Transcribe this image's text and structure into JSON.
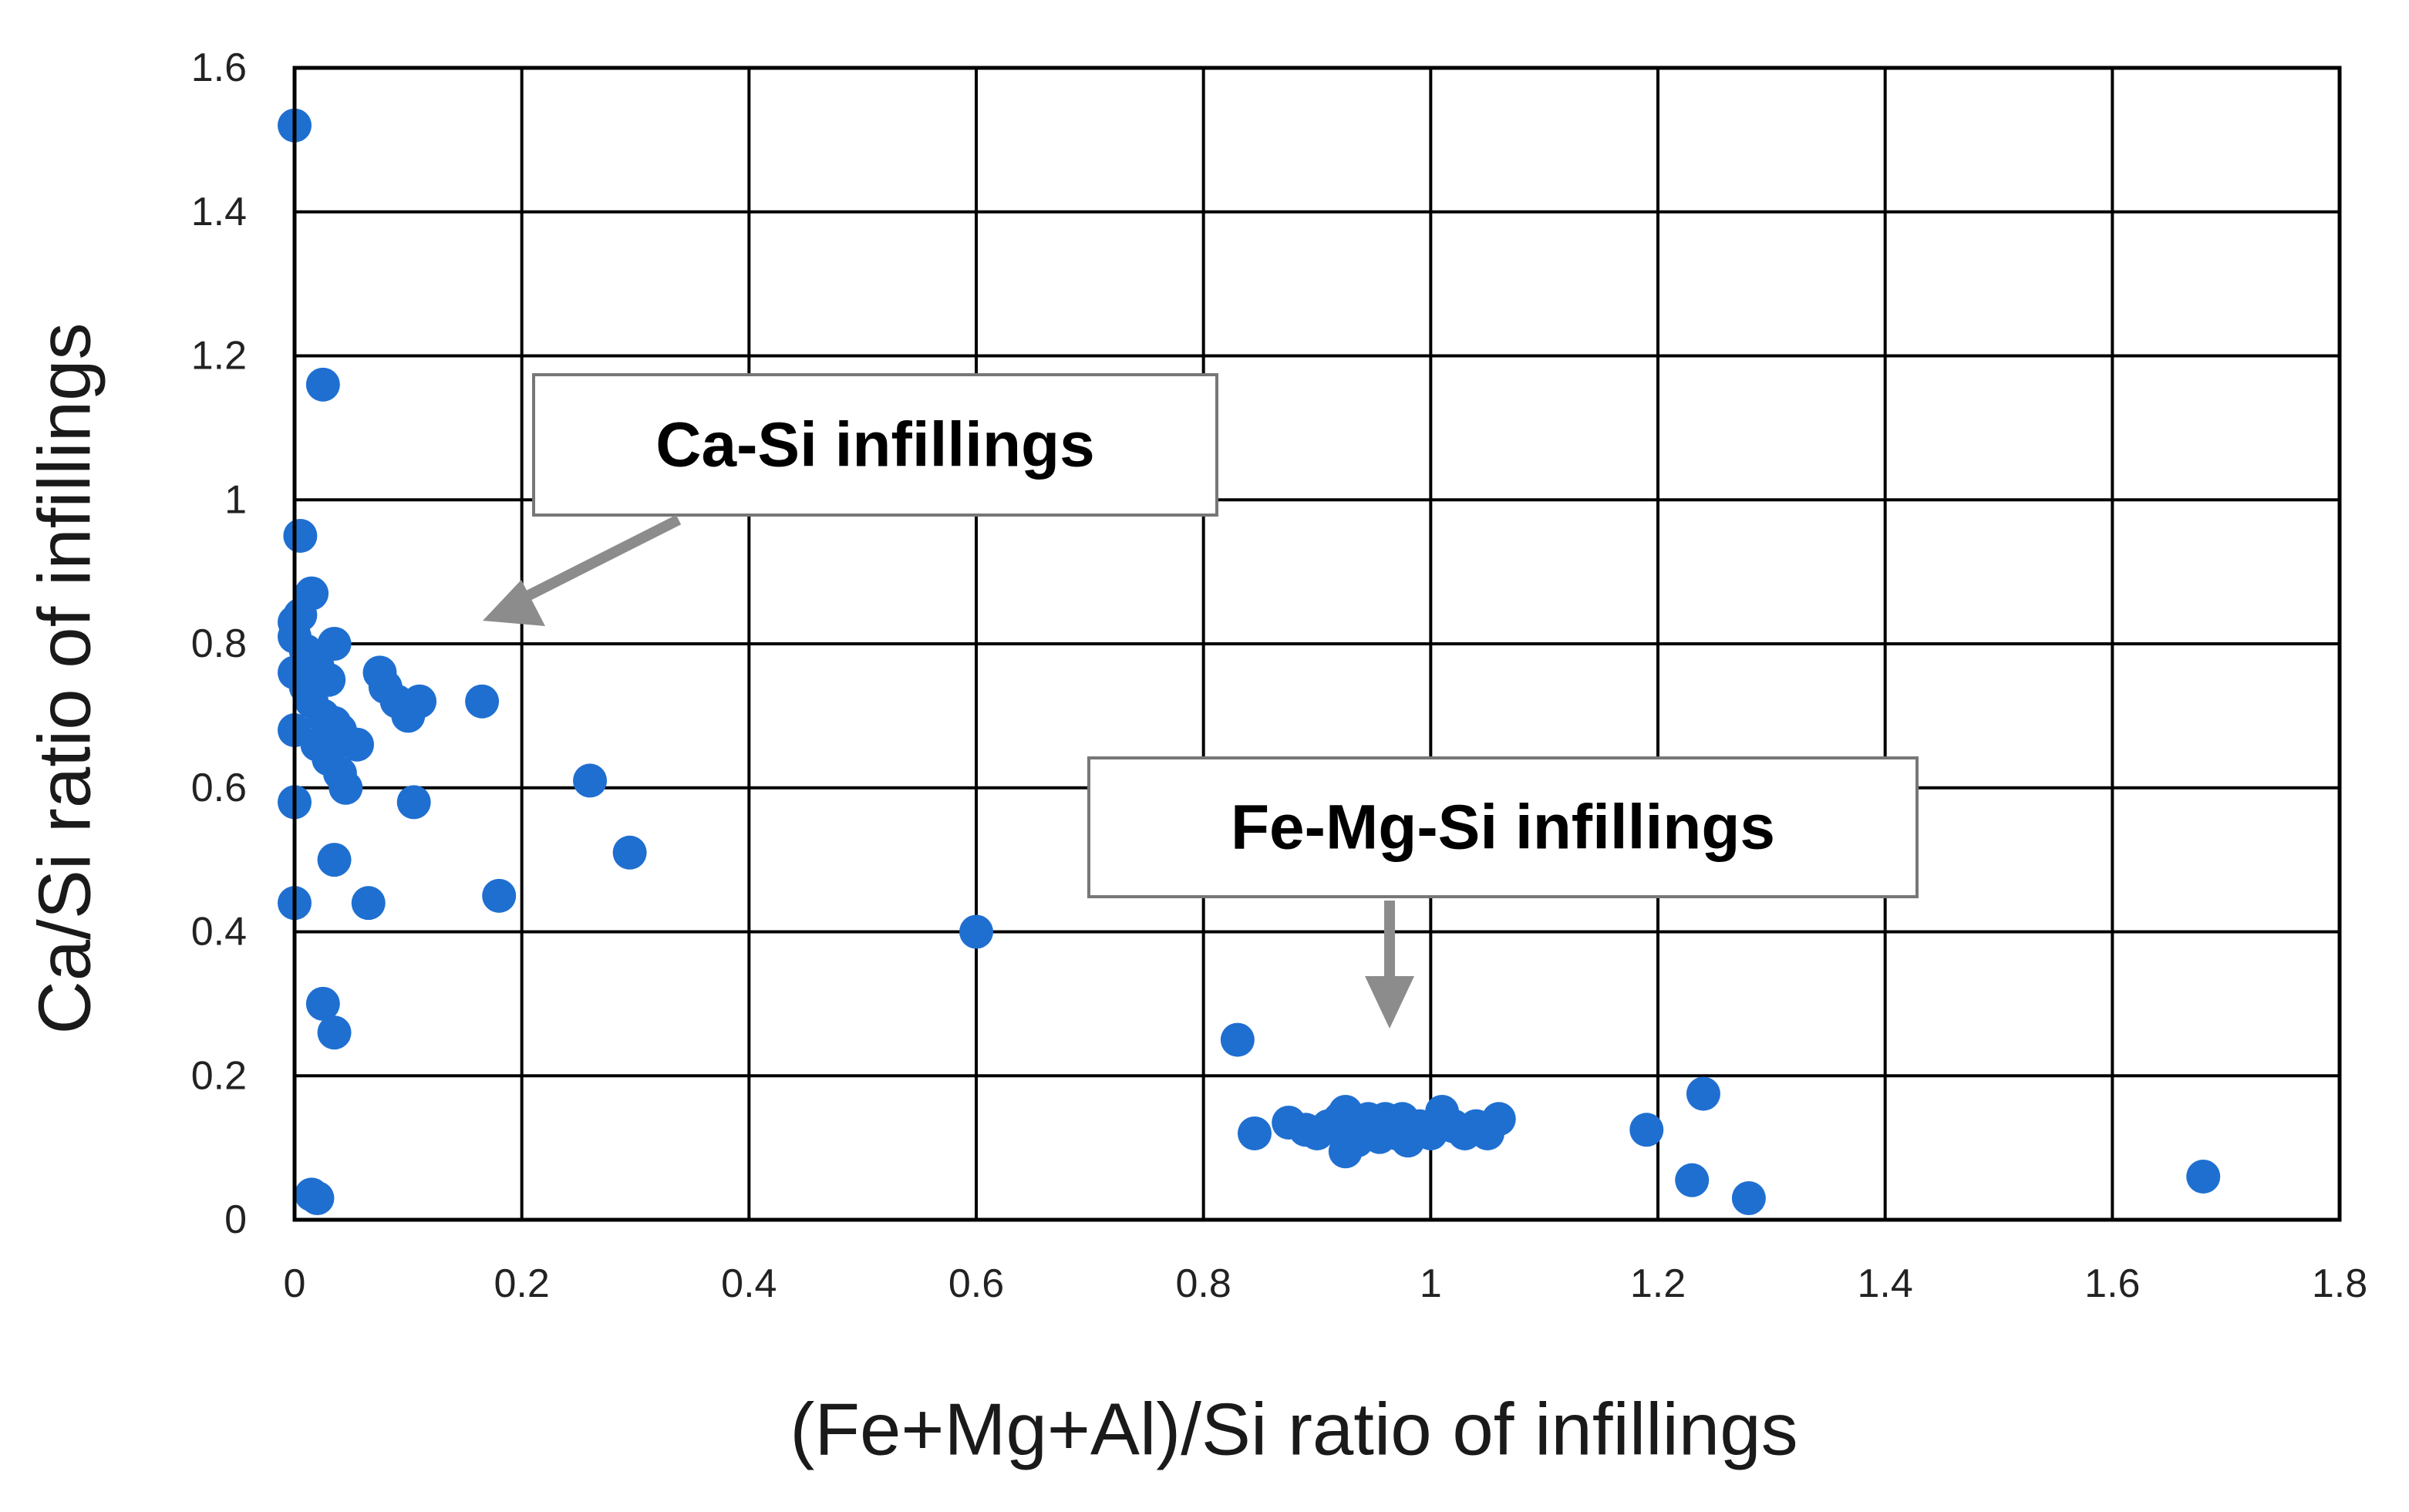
{
  "chart_data": {
    "type": "scatter",
    "xlabel": "(Fe+Mg+Al)/Si ratio of infillings",
    "ylabel": "Ca/Si ratio of infillings",
    "xlim": [
      0,
      1.8
    ],
    "ylim": [
      0,
      1.6
    ],
    "x_ticks": [
      0,
      0.2,
      0.4,
      0.6,
      0.8,
      1.0,
      1.2,
      1.4,
      1.6,
      1.8
    ],
    "y_ticks": [
      0,
      0.2,
      0.4,
      0.6,
      0.8,
      1.0,
      1.2,
      1.4,
      1.6
    ],
    "x_tick_labels": [
      "0",
      "0.2",
      "0.4",
      "0.6",
      "0.8",
      "1",
      "1.2",
      "1.4",
      "1.6",
      "1.8"
    ],
    "y_tick_labels": [
      "0",
      "0.2",
      "0.4",
      "0.6",
      "0.8",
      "1",
      "1.2",
      "1.4",
      "1.6"
    ],
    "grid": true,
    "legend": "none",
    "marker_color": "#1f6fd1",
    "series": [
      {
        "points": [
          [
            0.0,
            1.52
          ],
          [
            0.025,
            1.16
          ],
          [
            0.005,
            0.95
          ],
          [
            0.015,
            0.87
          ],
          [
            0.0,
            0.83
          ],
          [
            0.005,
            0.84
          ],
          [
            0.0,
            0.81
          ],
          [
            0.01,
            0.79
          ],
          [
            0.035,
            0.8
          ],
          [
            0.02,
            0.77
          ],
          [
            0.0,
            0.76
          ],
          [
            0.01,
            0.74
          ],
          [
            0.03,
            0.75
          ],
          [
            0.015,
            0.72
          ],
          [
            0.025,
            0.7
          ],
          [
            0.0,
            0.68
          ],
          [
            0.035,
            0.69
          ],
          [
            0.04,
            0.68
          ],
          [
            0.02,
            0.66
          ],
          [
            0.03,
            0.64
          ],
          [
            0.04,
            0.62
          ],
          [
            0.055,
            0.66
          ],
          [
            0.045,
            0.6
          ],
          [
            0.0,
            0.58
          ],
          [
            0.075,
            0.76
          ],
          [
            0.08,
            0.74
          ],
          [
            0.09,
            0.72
          ],
          [
            0.1,
            0.7
          ],
          [
            0.11,
            0.72
          ],
          [
            0.165,
            0.72
          ],
          [
            0.105,
            0.58
          ],
          [
            0.26,
            0.61
          ],
          [
            0.295,
            0.51
          ],
          [
            0.035,
            0.5
          ],
          [
            0.0,
            0.44
          ],
          [
            0.065,
            0.44
          ],
          [
            0.18,
            0.45
          ],
          [
            0.6,
            0.4
          ],
          [
            0.025,
            0.3
          ],
          [
            0.035,
            0.26
          ],
          [
            0.015,
            0.035
          ],
          [
            0.02,
            0.03
          ],
          [
            0.83,
            0.25
          ],
          [
            0.845,
            0.12
          ],
          [
            0.875,
            0.135
          ],
          [
            0.89,
            0.125
          ],
          [
            0.9,
            0.12
          ],
          [
            0.91,
            0.13
          ],
          [
            0.92,
            0.14
          ],
          [
            0.925,
            0.15
          ],
          [
            0.93,
            0.12
          ],
          [
            0.935,
            0.11
          ],
          [
            0.94,
            0.13
          ],
          [
            0.945,
            0.14
          ],
          [
            0.95,
            0.125
          ],
          [
            0.955,
            0.115
          ],
          [
            0.96,
            0.14
          ],
          [
            0.965,
            0.13
          ],
          [
            0.97,
            0.12
          ],
          [
            0.975,
            0.14
          ],
          [
            0.98,
            0.11
          ],
          [
            0.99,
            0.13
          ],
          [
            1.0,
            0.12
          ],
          [
            1.01,
            0.15
          ],
          [
            1.02,
            0.13
          ],
          [
            1.03,
            0.12
          ],
          [
            1.04,
            0.13
          ],
          [
            1.05,
            0.12
          ],
          [
            1.06,
            0.14
          ],
          [
            0.925,
            0.095
          ],
          [
            1.19,
            0.125
          ],
          [
            1.24,
            0.175
          ],
          [
            1.23,
            0.055
          ],
          [
            1.28,
            0.03
          ],
          [
            1.68,
            0.06
          ]
        ]
      }
    ],
    "annotations": [
      {
        "text": "Ca-Si infillings"
      },
      {
        "text": "Fe-Mg-Si infillings"
      }
    ]
  }
}
